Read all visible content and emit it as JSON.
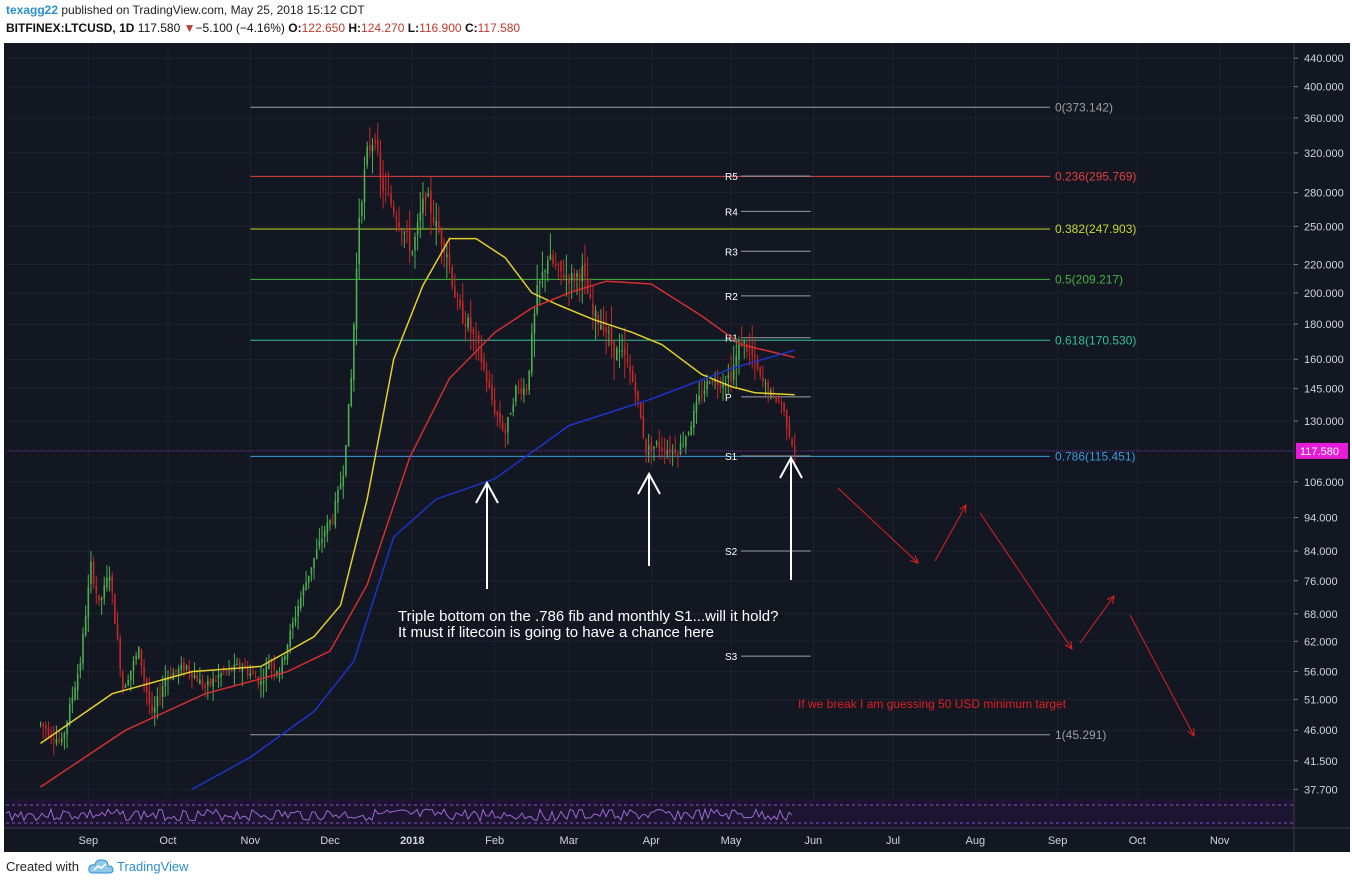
{
  "header": {
    "author": "texagg22",
    "published": "published on TradingView.com, May 25, 2018 15:12 CDT",
    "symbol": "BITFINEX:LTCUSD, 1D",
    "last": "117.580",
    "down_arrow": "▼",
    "change": "−5.100 (−4.16%)",
    "o_label": "O:",
    "o_value": "122.650",
    "h_label": "H:",
    "h_value": "124.270",
    "l_label": "L:",
    "l_value": "116.900",
    "c_label": "C:",
    "c_value": "117.580"
  },
  "footer": {
    "created_with": "Created with",
    "brand": "TradingView",
    "logo_icon": "tradingview-cloud-icon"
  },
  "colors": {
    "background": "#131722",
    "candle_up": "#4caf50",
    "candle_down": "#c62828",
    "ma_fast": "#e2cf2b",
    "ma_mid": "#d32f2f",
    "ma_slow": "#1e33c8",
    "price_tag": "#e81cd8",
    "annotation_red": "#e02020"
  },
  "chart_data": {
    "type": "candlestick",
    "log_scale": true,
    "grid": true,
    "ylim": [
      36.5,
      460
    ],
    "y_ticks": [
      "440.000",
      "400.000",
      "360.000",
      "320.000",
      "280.000",
      "250.000",
      "220.000",
      "200.000",
      "180.000",
      "160.000",
      "145.000",
      "130.000",
      "106.000",
      "94.000",
      "84.000",
      "76.000",
      "68.000",
      "62.000",
      "56.000",
      "51.000",
      "46.000",
      "41.500",
      "37.700"
    ],
    "x_ticks": [
      "Sep",
      "Oct",
      "Nov",
      "Dec",
      "2018",
      "Feb",
      "Mar",
      "Apr",
      "May",
      "Jun",
      "Jul",
      "Aug",
      "Sep",
      "Oct",
      "Nov"
    ],
    "last_price_tag": "117.580",
    "fib_levels": [
      {
        "label": "0(373.142)",
        "value": 373.142,
        "color": "#9e9e9e"
      },
      {
        "label": "0.236(295.769)",
        "value": 295.769,
        "color": "#e04040"
      },
      {
        "label": "0.382(247.903)",
        "value": 247.903,
        "color": "#c8d62a"
      },
      {
        "label": "0.5(209.217)",
        "value": 209.217,
        "color": "#43b440"
      },
      {
        "label": "0.618(170.530)",
        "value": 170.53,
        "color": "#2fbf9a"
      },
      {
        "label": "0.786(115.451)",
        "value": 115.451,
        "color": "#3a9ad9"
      },
      {
        "label": "1(45.291)",
        "value": 45.291,
        "color": "#9e9e9e"
      }
    ],
    "pivots": [
      {
        "label": "R5",
        "value": 296
      },
      {
        "label": "R4",
        "value": 263
      },
      {
        "label": "R3",
        "value": 230
      },
      {
        "label": "R2",
        "value": 198
      },
      {
        "label": "R1",
        "value": 172
      },
      {
        "label": "P",
        "value": 141
      },
      {
        "label": "S1",
        "value": 115.6
      },
      {
        "label": "S2",
        "value": 84
      },
      {
        "label": "S3",
        "value": 59
      }
    ],
    "candle_path": [
      [
        "2017-08-14",
        47
      ],
      [
        "2017-08-22",
        44
      ],
      [
        "2017-08-29",
        58
      ],
      [
        "2017-09-02",
        80
      ],
      [
        "2017-09-05",
        70
      ],
      [
        "2017-09-09",
        78
      ],
      [
        "2017-09-14",
        53
      ],
      [
        "2017-09-20",
        60
      ],
      [
        "2017-09-25",
        48
      ],
      [
        "2017-09-30",
        55
      ],
      [
        "2017-10-08",
        57
      ],
      [
        "2017-10-15",
        53
      ],
      [
        "2017-10-22",
        56
      ],
      [
        "2017-10-29",
        57
      ],
      [
        "2017-11-05",
        54
      ],
      [
        "2017-11-08",
        58
      ],
      [
        "2017-11-12",
        56
      ],
      [
        "2017-11-19",
        70
      ],
      [
        "2017-11-24",
        80
      ],
      [
        "2017-11-29",
        90
      ],
      [
        "2017-12-02",
        94
      ],
      [
        "2017-12-06",
        110
      ],
      [
        "2017-12-09",
        150
      ],
      [
        "2017-12-12",
        260
      ],
      [
        "2017-12-15",
        320
      ],
      [
        "2017-12-18",
        340
      ],
      [
        "2017-12-20",
        290
      ],
      [
        "2017-12-24",
        270
      ],
      [
        "2017-12-28",
        250
      ],
      [
        "2018-01-01",
        230
      ],
      [
        "2018-01-06",
        280
      ],
      [
        "2018-01-10",
        250
      ],
      [
        "2018-01-14",
        230
      ],
      [
        "2018-01-18",
        190
      ],
      [
        "2018-01-22",
        180
      ],
      [
        "2018-01-26",
        165
      ],
      [
        "2018-02-01",
        135
      ],
      [
        "2018-02-05",
        125
      ],
      [
        "2018-02-09",
        145
      ],
      [
        "2018-02-13",
        145
      ],
      [
        "2018-02-17",
        200
      ],
      [
        "2018-02-21",
        225
      ],
      [
        "2018-02-25",
        215
      ],
      [
        "2018-03-02",
        210
      ],
      [
        "2018-03-06",
        215
      ],
      [
        "2018-03-10",
        185
      ],
      [
        "2018-03-14",
        180
      ],
      [
        "2018-03-18",
        165
      ],
      [
        "2018-03-22",
        160
      ],
      [
        "2018-03-26",
        145
      ],
      [
        "2018-03-30",
        118
      ],
      [
        "2018-04-03",
        120
      ],
      [
        "2018-04-07",
        118
      ],
      [
        "2018-04-11",
        118
      ],
      [
        "2018-04-15",
        126
      ],
      [
        "2018-04-19",
        140
      ],
      [
        "2018-04-23",
        150
      ],
      [
        "2018-04-27",
        148
      ],
      [
        "2018-05-01",
        152
      ],
      [
        "2018-05-05",
        170
      ],
      [
        "2018-05-08",
        165
      ],
      [
        "2018-05-12",
        150
      ],
      [
        "2018-05-16",
        142
      ],
      [
        "2018-05-20",
        138
      ],
      [
        "2018-05-23",
        125
      ],
      [
        "2018-05-25",
        117.58
      ]
    ],
    "ma_fast_path": [
      [
        "2017-08-14",
        44
      ],
      [
        "2017-09-10",
        52
      ],
      [
        "2017-10-10",
        56
      ],
      [
        "2017-11-05",
        57
      ],
      [
        "2017-11-25",
        63
      ],
      [
        "2017-12-05",
        70
      ],
      [
        "2017-12-15",
        100
      ],
      [
        "2017-12-25",
        160
      ],
      [
        "2018-01-05",
        205
      ],
      [
        "2018-01-15",
        240
      ],
      [
        "2018-01-25",
        240
      ],
      [
        "2018-02-05",
        225
      ],
      [
        "2018-02-15",
        200
      ],
      [
        "2018-02-25",
        192
      ],
      [
        "2018-03-10",
        183
      ],
      [
        "2018-03-25",
        175
      ],
      [
        "2018-04-05",
        168
      ],
      [
        "2018-04-20",
        152
      ],
      [
        "2018-05-01",
        146
      ],
      [
        "2018-05-10",
        143
      ],
      [
        "2018-05-25",
        142
      ]
    ],
    "ma_mid_path": [
      [
        "2017-08-14",
        38
      ],
      [
        "2017-09-15",
        46
      ],
      [
        "2017-10-15",
        52
      ],
      [
        "2017-11-15",
        56
      ],
      [
        "2017-12-01",
        60
      ],
      [
        "2017-12-15",
        75
      ],
      [
        "2017-12-31",
        115
      ],
      [
        "2018-01-15",
        150
      ],
      [
        "2018-02-01",
        175
      ],
      [
        "2018-02-15",
        190
      ],
      [
        "2018-03-01",
        200
      ],
      [
        "2018-03-15",
        208
      ],
      [
        "2018-04-01",
        206
      ],
      [
        "2018-04-20",
        185
      ],
      [
        "2018-05-05",
        168
      ],
      [
        "2018-05-25",
        161
      ]
    ],
    "ma_slow_path": [
      [
        "2017-10-10",
        37.7
      ],
      [
        "2017-11-01",
        42
      ],
      [
        "2017-11-25",
        49
      ],
      [
        "2017-12-10",
        58
      ],
      [
        "2017-12-25",
        88
      ],
      [
        "2018-01-10",
        100
      ],
      [
        "2018-02-01",
        107
      ],
      [
        "2018-03-01",
        128
      ],
      [
        "2018-04-01",
        140
      ],
      [
        "2018-05-01",
        155
      ],
      [
        "2018-05-25",
        165
      ]
    ],
    "annotations": {
      "main_line1": "Triple bottom on the .786 fib and monthly S1...will it hold?",
      "main_line2": "It must if litecoin is going to have a chance here",
      "red_note": "If we break I am guessing 50 USD minimum target"
    }
  }
}
